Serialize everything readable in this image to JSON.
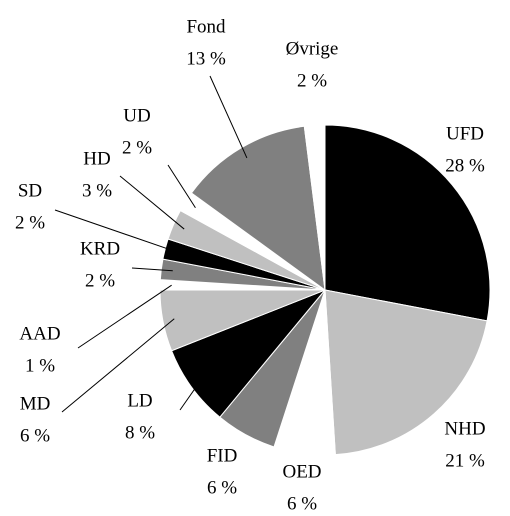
{
  "chart_data": {
    "type": "pie",
    "categories": [
      "UFD",
      "NHD",
      "OED",
      "FID",
      "LD",
      "MD",
      "AAD",
      "KRD",
      "SD",
      "HD",
      "UD",
      "Fond",
      "Øvrige"
    ],
    "values": [
      28,
      21,
      6,
      6,
      8,
      6,
      1,
      2,
      2,
      3,
      2,
      13,
      2
    ],
    "value_labels": [
      "28 %",
      "21 %",
      "6 %",
      "6 %",
      "8 %",
      "6 %",
      "1 %",
      "2 %",
      "2 %",
      "3 %",
      "2 %",
      "13 %",
      "2 %"
    ],
    "colors": [
      "#000000",
      "#c0c0c0",
      "#ffffff",
      "#808080",
      "#000000",
      "#c0c0c0",
      "#ffffff",
      "#808080",
      "#000000",
      "#c0c0c0",
      "#ffffff",
      "#808080",
      "#ffffff"
    ]
  }
}
